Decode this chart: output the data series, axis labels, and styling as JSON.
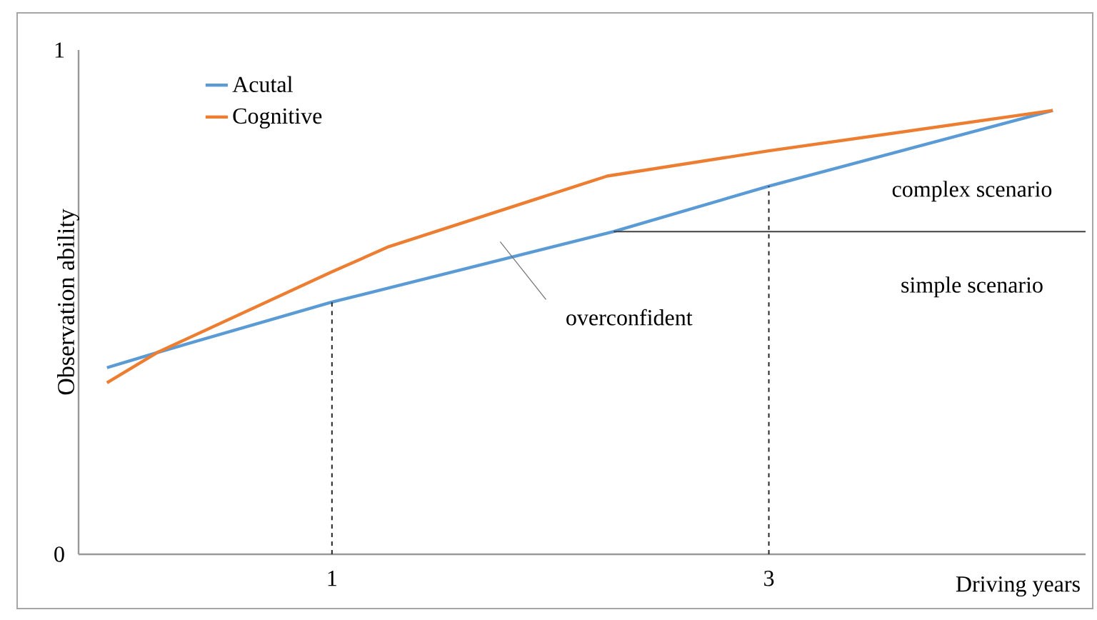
{
  "chart_data": {
    "type": "line",
    "xlabel": "Driving years",
    "ylabel": "Observation ability",
    "xlim": [
      -0.16,
      4.45
    ],
    "ylim": [
      0,
      1
    ],
    "xticks": [
      1,
      3
    ],
    "yticks": [
      0,
      1
    ],
    "grid": false,
    "legend": "top left",
    "marker": "none",
    "line_style": "solid",
    "series": [
      {
        "name": "Acutal",
        "color": "#5b9bd5",
        "x": [
          -0.03,
          0.2,
          1,
          2.29,
          3,
          4.3
        ],
        "values": [
          0.37,
          0.4,
          0.5,
          0.64,
          0.73,
          0.88
        ]
      },
      {
        "name": "Cognitive",
        "color": "#ed7d31",
        "x": [
          -0.03,
          0.2,
          1,
          1.26,
          2.26,
          3,
          4.3
        ],
        "values": [
          0.34,
          0.4,
          0.56,
          0.61,
          0.75,
          0.8,
          0.88
        ]
      },
      {
        "type": "line",
        "color": "#404040",
        "x": [
          2.29,
          4.45
        ],
        "values": [
          0.64,
          0.64
        ]
      },
      {
        "type": "line",
        "color": "#262626",
        "line_style": "dashed",
        "x": [
          1,
          1
        ],
        "values": [
          0,
          0.5
        ]
      },
      {
        "type": "line",
        "color": "#262626",
        "line_style": "dashed",
        "x": [
          3,
          3
        ],
        "values": [
          0,
          0.73
        ]
      }
    ],
    "annotations": [
      "complex scenario",
      "simple scenario",
      "overconfident"
    ]
  }
}
